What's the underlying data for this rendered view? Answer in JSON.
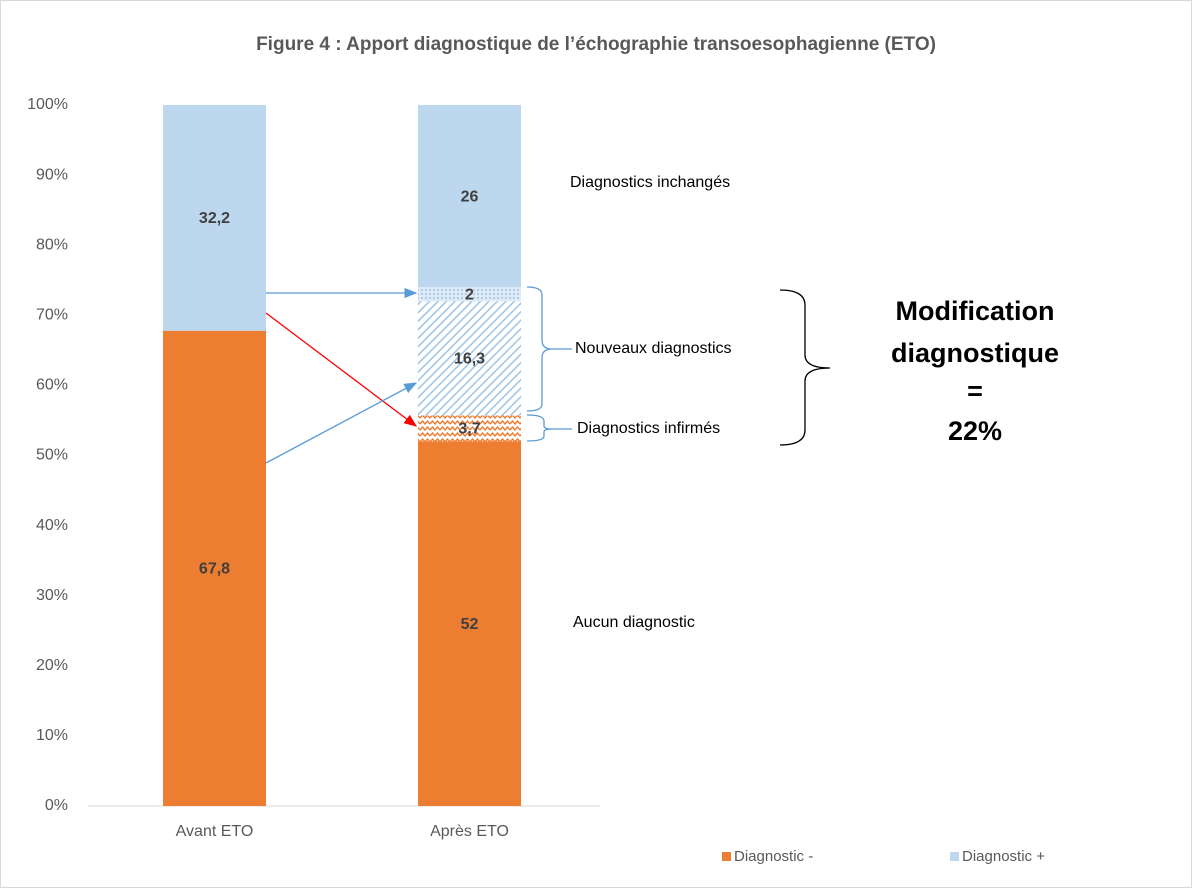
{
  "chart_data": {
    "type": "stacked_bar",
    "title": "Figure 4 : Apport diagnostique de l’échographie transoesophagienne (ETO)",
    "categories": [
      "Avant ETO",
      "Après ETO"
    ],
    "series": [
      {
        "name": "Diagnostic -",
        "color": "#ed7d31",
        "values": [
          67.8,
          52
        ],
        "value_labels": [
          "67,8",
          "52"
        ]
      },
      {
        "color": "#ed7d31",
        "pattern": "zigzag",
        "values": [
          null,
          3.7
        ],
        "value_labels": [
          null,
          "3,7"
        ]
      },
      {
        "color": "#9dc3e6",
        "pattern": "diagonal",
        "values": [
          null,
          16.3
        ],
        "value_labels": [
          null,
          "16,3"
        ]
      },
      {
        "color": "#9dc3e6",
        "pattern": "dots",
        "values": [
          null,
          2
        ],
        "value_labels": [
          null,
          "2"
        ]
      },
      {
        "name": "Diagnostic +",
        "color": "#bdd7ee",
        "values": [
          32.2,
          26
        ],
        "value_labels": [
          "32,2",
          "26"
        ]
      }
    ],
    "ylim": [
      0,
      100
    ],
    "yticks": [
      {
        "value": 0,
        "label": "0%"
      },
      {
        "value": 10,
        "label": "10%"
      },
      {
        "value": 20,
        "label": "20%"
      },
      {
        "value": 30,
        "label": "30%"
      },
      {
        "value": 40,
        "label": "40%"
      },
      {
        "value": 50,
        "label": "50%"
      },
      {
        "value": 60,
        "label": "60%"
      },
      {
        "value": 70,
        "label": "70%"
      },
      {
        "value": 80,
        "label": "80%"
      },
      {
        "value": 90,
        "label": "90%"
      },
      {
        "value": 100,
        "label": "100%"
      }
    ],
    "legend": "bottom-right",
    "annotations": [
      "Diagnostics inchangés",
      "Nouveaux diagnostics",
      "Diagnostics infirmés",
      "Aucun diagnostic"
    ],
    "summary": [
      "Modification",
      "diagnostique",
      "=",
      "22%"
    ]
  }
}
